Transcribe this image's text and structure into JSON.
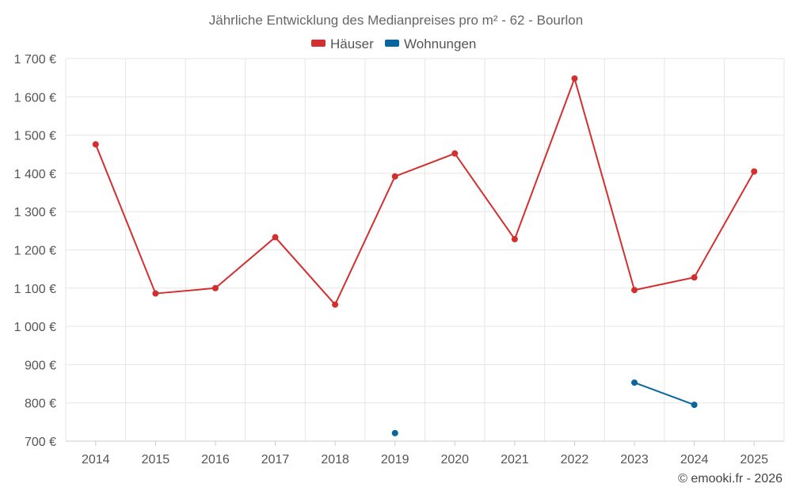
{
  "chart_data": {
    "type": "line",
    "title": "Jährliche Entwicklung des Medianpreises pro m² - 62 - Bourlon",
    "categories": [
      "2014",
      "2015",
      "2016",
      "2017",
      "2018",
      "2019",
      "2020",
      "2021",
      "2022",
      "2023",
      "2024",
      "2025"
    ],
    "ylim": [
      700,
      1700
    ],
    "ytick_step": 100,
    "ytick_labels": [
      "700 €",
      "800 €",
      "900 €",
      "1 000 €",
      "1 100 €",
      "1 200 €",
      "1 300 €",
      "1 400 €",
      "1 500 €",
      "1 600 €",
      "1 700 €"
    ],
    "series": [
      {
        "name": "Häuser",
        "color": "#d32f2f",
        "values": [
          1476,
          1086,
          1100,
          1233,
          1057,
          1392,
          1452,
          1228,
          1648,
          1095,
          1128,
          1405
        ]
      },
      {
        "name": "Wohnungen",
        "color": "#08669e",
        "values": [
          null,
          null,
          null,
          null,
          null,
          721,
          null,
          null,
          null,
          853,
          795,
          null
        ]
      }
    ],
    "legend_position": "top-center",
    "grid": true
  },
  "credit": "© emooki.fr - 2026"
}
